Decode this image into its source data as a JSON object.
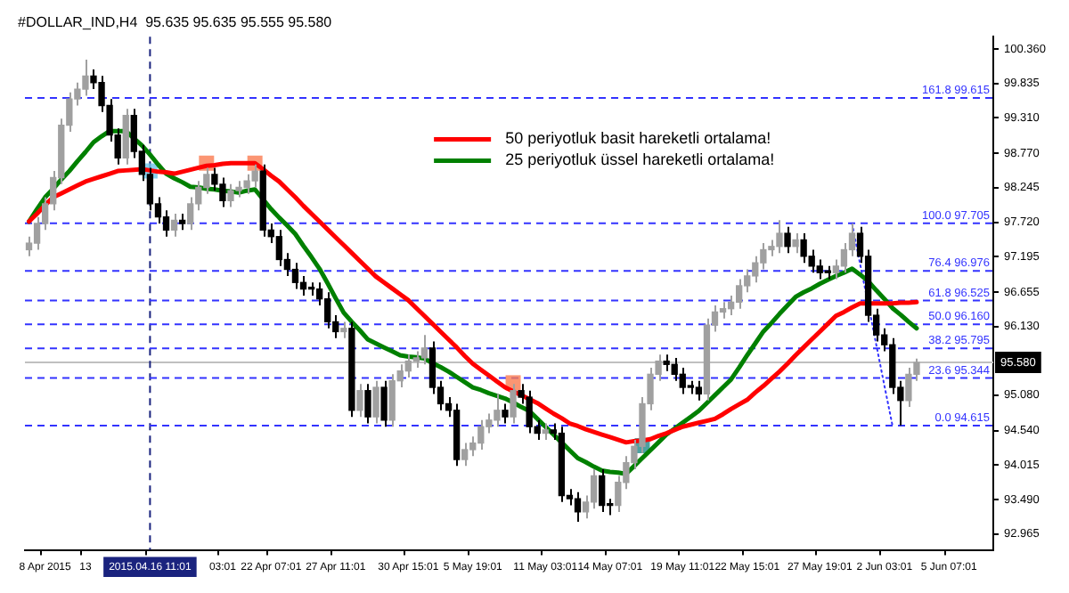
{
  "chart_data": {
    "type": "candlestick",
    "title": "#DOLLAR_IND,H4  95.635 95.635 95.555 95.580",
    "categories": [
      null,
      null,
      "8 Apr 2015",
      null,
      null,
      null,
      null,
      "13",
      null,
      null,
      null,
      null,
      null,
      null,
      null,
      "2015.04.16 11:01",
      null,
      null,
      null,
      null,
      null,
      null,
      null,
      null,
      "03:01",
      null,
      null,
      null,
      null,
      null,
      "22 Apr 07:01",
      null,
      null,
      null,
      null,
      null,
      null,
      null,
      "27 Apr 11:01",
      null,
      null,
      null,
      null,
      null,
      null,
      null,
      null,
      "30 Apr 15:01",
      null,
      null,
      null,
      null,
      null,
      null,
      null,
      "5 May 19:01",
      null,
      null,
      null,
      null,
      null,
      null,
      null,
      null,
      "11 May 03:01",
      null,
      null,
      null,
      null,
      null,
      null,
      null,
      "14 May 07:01",
      null,
      null,
      null,
      null,
      null,
      null,
      null,
      null,
      "19 May 11:01",
      null,
      null,
      null,
      null,
      null,
      null,
      null,
      "22 May 15:01",
      null,
      null,
      null,
      null,
      null,
      null,
      null,
      null,
      "27 May 19:01",
      null,
      null,
      null,
      null,
      null,
      null,
      null,
      "2 Jun 03:01",
      null,
      null,
      null,
      null,
      null,
      null,
      null,
      "5 Jun 07:01",
      null,
      null,
      null,
      null,
      null
    ],
    "ohlc": [
      [
        97.3,
        97.5,
        97.2,
        97.4
      ],
      [
        97.4,
        97.8,
        97.3,
        97.7
      ],
      [
        97.7,
        98.1,
        97.6,
        98.0
      ],
      [
        98.0,
        98.5,
        97.9,
        98.4
      ],
      [
        98.4,
        99.3,
        98.3,
        99.2
      ],
      [
        99.2,
        99.7,
        99.1,
        99.6
      ],
      [
        99.6,
        99.85,
        99.5,
        99.75
      ],
      [
        99.75,
        100.2,
        99.65,
        99.95
      ],
      [
        99.95,
        100.05,
        99.75,
        99.85
      ],
      [
        99.85,
        99.95,
        99.4,
        99.5
      ],
      [
        99.5,
        99.6,
        98.95,
        99.05
      ],
      [
        99.05,
        99.15,
        98.6,
        98.7
      ],
      [
        98.7,
        99.45,
        98.6,
        99.35
      ],
      [
        99.35,
        99.45,
        98.7,
        98.8
      ],
      [
        98.8,
        98.9,
        98.35,
        98.45
      ],
      [
        98.45,
        98.55,
        97.9,
        98.0
      ],
      [
        98.0,
        98.1,
        97.7,
        97.8
      ],
      [
        97.8,
        97.9,
        97.5,
        97.6
      ],
      [
        97.6,
        97.85,
        97.5,
        97.75
      ],
      [
        97.75,
        97.85,
        97.6,
        97.7
      ],
      [
        97.7,
        98.1,
        97.6,
        98.0
      ],
      [
        98.0,
        98.35,
        97.9,
        98.25
      ],
      [
        98.25,
        98.55,
        98.15,
        98.45
      ],
      [
        98.45,
        98.55,
        98.2,
        98.3
      ],
      [
        98.3,
        98.4,
        97.95,
        98.05
      ],
      [
        98.05,
        98.3,
        97.95,
        98.2
      ],
      [
        98.2,
        98.35,
        98.1,
        98.25
      ],
      [
        98.25,
        98.45,
        98.15,
        98.35
      ],
      [
        98.35,
        98.6,
        98.25,
        98.5
      ],
      [
        98.5,
        98.6,
        97.5,
        97.6
      ],
      [
        97.6,
        97.7,
        97.4,
        97.5
      ],
      [
        97.5,
        97.6,
        97.05,
        97.15
      ],
      [
        97.15,
        97.25,
        96.9,
        97.0
      ],
      [
        97.0,
        97.1,
        96.7,
        96.8
      ],
      [
        96.8,
        96.9,
        96.6,
        96.7
      ],
      [
        96.7,
        96.8,
        96.6,
        96.7
      ],
      [
        96.7,
        96.8,
        96.45,
        96.55
      ],
      [
        96.55,
        96.65,
        96.1,
        96.2
      ],
      [
        96.2,
        96.3,
        95.95,
        96.05
      ],
      [
        96.05,
        96.2,
        95.95,
        96.1
      ],
      [
        96.1,
        96.2,
        94.75,
        94.85
      ],
      [
        94.85,
        95.25,
        94.75,
        95.15
      ],
      [
        95.15,
        95.25,
        94.65,
        94.75
      ],
      [
        94.75,
        95.3,
        94.65,
        95.2
      ],
      [
        95.2,
        95.3,
        94.6,
        94.7
      ],
      [
        94.7,
        95.4,
        94.6,
        95.3
      ],
      [
        95.3,
        95.55,
        95.2,
        95.45
      ],
      [
        95.45,
        95.7,
        95.35,
        95.6
      ],
      [
        95.6,
        95.75,
        95.5,
        95.65
      ],
      [
        95.65,
        96.0,
        95.55,
        95.8
      ],
      [
        95.8,
        95.9,
        95.1,
        95.2
      ],
      [
        95.2,
        95.3,
        94.85,
        94.95
      ],
      [
        94.95,
        95.05,
        94.75,
        94.85
      ],
      [
        94.85,
        94.95,
        94.0,
        94.1
      ],
      [
        94.1,
        94.35,
        94.0,
        94.25
      ],
      [
        94.25,
        94.45,
        94.15,
        94.35
      ],
      [
        94.35,
        94.7,
        94.25,
        94.6
      ],
      [
        94.6,
        94.8,
        94.5,
        94.7
      ],
      [
        94.7,
        95.1,
        94.6,
        94.85
      ],
      [
        94.85,
        94.95,
        94.65,
        94.75
      ],
      [
        94.75,
        95.25,
        94.65,
        95.15
      ],
      [
        95.15,
        95.25,
        94.95,
        95.05
      ],
      [
        95.05,
        95.15,
        94.5,
        94.6
      ],
      [
        94.6,
        94.7,
        94.4,
        94.5
      ],
      [
        94.5,
        94.65,
        94.4,
        94.55
      ],
      [
        94.55,
        94.65,
        94.4,
        94.5
      ],
      [
        94.5,
        94.6,
        93.45,
        93.55
      ],
      [
        93.55,
        93.65,
        93.4,
        93.5
      ],
      [
        93.5,
        93.6,
        93.15,
        93.3
      ],
      [
        93.3,
        93.55,
        93.2,
        93.45
      ],
      [
        93.45,
        93.95,
        93.35,
        93.85
      ],
      [
        93.85,
        93.95,
        93.3,
        93.4
      ],
      [
        93.4,
        93.5,
        93.25,
        93.4
      ],
      [
        93.4,
        93.85,
        93.3,
        93.75
      ],
      [
        93.75,
        94.15,
        93.65,
        94.05
      ],
      [
        94.05,
        94.4,
        93.95,
        94.3
      ],
      [
        94.3,
        95.05,
        94.2,
        94.95
      ],
      [
        94.95,
        95.5,
        94.85,
        95.4
      ],
      [
        95.4,
        95.7,
        95.3,
        95.6
      ],
      [
        95.6,
        95.7,
        95.45,
        95.55
      ],
      [
        95.55,
        95.65,
        95.3,
        95.4
      ],
      [
        95.4,
        95.5,
        95.1,
        95.2
      ],
      [
        95.2,
        95.3,
        95.1,
        95.2
      ],
      [
        95.2,
        95.3,
        95.0,
        95.1
      ],
      [
        95.1,
        96.25,
        95.0,
        96.15
      ],
      [
        96.15,
        96.45,
        96.05,
        96.35
      ],
      [
        96.35,
        96.5,
        96.25,
        96.4
      ],
      [
        96.4,
        96.6,
        96.3,
        96.5
      ],
      [
        96.5,
        96.85,
        96.4,
        96.75
      ],
      [
        96.75,
        97.0,
        96.65,
        96.9
      ],
      [
        96.9,
        97.2,
        96.8,
        97.1
      ],
      [
        97.1,
        97.4,
        97.0,
        97.3
      ],
      [
        97.3,
        97.45,
        97.2,
        97.35
      ],
      [
        97.35,
        97.75,
        97.25,
        97.55
      ],
      [
        97.55,
        97.65,
        97.25,
        97.35
      ],
      [
        97.35,
        97.55,
        97.25,
        97.45
      ],
      [
        97.45,
        97.55,
        97.1,
        97.2
      ],
      [
        97.2,
        97.3,
        96.95,
        97.05
      ],
      [
        97.05,
        97.15,
        96.85,
        96.95
      ],
      [
        96.95,
        97.05,
        96.85,
        96.95
      ],
      [
        96.95,
        97.15,
        96.85,
        97.05
      ],
      [
        97.05,
        97.4,
        96.95,
        97.3
      ],
      [
        97.3,
        97.7,
        97.2,
        97.55
      ],
      [
        97.55,
        97.65,
        97.1,
        97.2
      ],
      [
        97.2,
        97.3,
        96.2,
        96.3
      ],
      [
        96.3,
        96.4,
        95.9,
        96.0
      ],
      [
        96.0,
        96.1,
        95.75,
        95.85
      ],
      [
        95.85,
        95.95,
        95.1,
        95.2
      ],
      [
        95.2,
        95.3,
        94.62,
        95.0
      ],
      [
        95.0,
        95.5,
        94.9,
        95.4
      ],
      [
        95.4,
        95.64,
        95.3,
        95.58
      ],
      null,
      null,
      null,
      null,
      null,
      null,
      null,
      null,
      null
    ],
    "colors": [
      "#a0a0a0",
      "#a0a0a0",
      "#a0a0a0",
      "#a0a0a0",
      "#a0a0a0",
      "#a0a0a0",
      "#a0a0a0",
      "#a0a0a0",
      "#000000",
      "#000000",
      "#000000",
      "#000000",
      "#a0a0a0",
      "#000000",
      "#000000",
      "#000000",
      "#000000",
      "#000000",
      "#a0a0a0",
      "#000000",
      "#a0a0a0",
      "#a0a0a0",
      "#a0a0a0",
      "#000000",
      "#000000",
      "#a0a0a0",
      "#a0a0a0",
      "#a0a0a0",
      "#a0a0a0",
      "#000000",
      "#000000",
      "#000000",
      "#000000",
      "#000000",
      "#000000",
      "#000000",
      "#000000",
      "#000000",
      "#000000",
      "#a0a0a0",
      "#000000",
      "#a0a0a0",
      "#000000",
      "#a0a0a0",
      "#000000",
      "#a0a0a0",
      "#a0a0a0",
      "#a0a0a0",
      "#a0a0a0",
      "#a0a0a0",
      "#000000",
      "#000000",
      "#000000",
      "#000000",
      "#a0a0a0",
      "#a0a0a0",
      "#a0a0a0",
      "#a0a0a0",
      "#a0a0a0",
      "#000000",
      "#a0a0a0",
      "#000000",
      "#000000",
      "#000000",
      "#a0a0a0",
      "#000000",
      "#000000",
      "#000000",
      "#000000",
      "#a0a0a0",
      "#a0a0a0",
      "#000000",
      "#000000",
      "#a0a0a0",
      "#a0a0a0",
      "#a0a0a0",
      "#a0a0a0",
      "#a0a0a0",
      "#a0a0a0",
      "#000000",
      "#000000",
      "#000000",
      "#000000",
      "#000000",
      "#a0a0a0",
      "#a0a0a0",
      "#a0a0a0",
      "#a0a0a0",
      "#a0a0a0",
      "#a0a0a0",
      "#a0a0a0",
      "#a0a0a0",
      "#a0a0a0",
      "#a0a0a0",
      "#000000",
      "#a0a0a0",
      "#000000",
      "#000000",
      "#000000",
      "#000000",
      "#a0a0a0",
      "#a0a0a0",
      "#a0a0a0",
      "#000000",
      "#000000",
      "#000000",
      "#000000",
      "#000000",
      "#000000",
      "#a0a0a0",
      "#a0a0a0",
      null,
      null,
      null,
      null,
      null,
      null,
      null,
      null,
      null
    ],
    "series": [
      {
        "type": "line",
        "name": "50 periyotluk basit hareketli ortalama!",
        "color": "#ff0000",
        "values": [
          97.73,
          97.85,
          97.98,
          98.1,
          98.16,
          98.22,
          98.28,
          98.34,
          98.38,
          98.42,
          98.46,
          98.5,
          98.51,
          98.52,
          98.53,
          98.51,
          98.49,
          98.48,
          98.46,
          98.49,
          98.52,
          98.55,
          98.58,
          98.59,
          98.61,
          98.62,
          98.62,
          98.62,
          98.62,
          98.53,
          98.43,
          98.34,
          98.22,
          98.1,
          97.97,
          97.85,
          97.73,
          97.61,
          97.49,
          97.37,
          97.25,
          97.13,
          97.01,
          96.89,
          96.8,
          96.71,
          96.62,
          96.53,
          96.41,
          96.29,
          96.17,
          96.05,
          95.93,
          95.81,
          95.68,
          95.56,
          95.47,
          95.38,
          95.29,
          95.2,
          95.14,
          95.08,
          95.02,
          94.96,
          94.88,
          94.8,
          94.73,
          94.65,
          94.61,
          94.56,
          94.52,
          94.48,
          94.44,
          94.4,
          94.36,
          94.38,
          94.39,
          94.41,
          94.46,
          94.5,
          94.55,
          94.6,
          94.63,
          94.66,
          94.69,
          94.72,
          94.79,
          94.87,
          94.94,
          95.01,
          95.12,
          95.22,
          95.33,
          95.44,
          95.56,
          95.69,
          95.81,
          95.93,
          96.05,
          96.17,
          96.29,
          96.35,
          96.42,
          96.48,
          96.48,
          96.48,
          96.48,
          96.48,
          96.49,
          96.49,
          96.5,
          null,
          null,
          null,
          null,
          null,
          null,
          null,
          null,
          null
        ]
      },
      {
        "type": "line",
        "name": "25 periyotluk üssel hareketli ortalama!",
        "color": "#008000",
        "values": [
          97.73,
          97.92,
          98.1,
          98.23,
          98.37,
          98.5,
          98.65,
          98.79,
          98.94,
          99.03,
          99.11,
          99.11,
          99.11,
          99.0,
          98.89,
          98.75,
          98.6,
          98.46,
          98.39,
          98.33,
          98.26,
          98.25,
          98.23,
          98.22,
          98.2,
          98.19,
          98.17,
          98.2,
          98.22,
          98.07,
          97.92,
          97.79,
          97.67,
          97.54,
          97.36,
          97.19,
          97.01,
          96.79,
          96.56,
          96.34,
          96.2,
          96.07,
          95.93,
          95.87,
          95.81,
          95.75,
          95.69,
          95.67,
          95.66,
          95.64,
          95.57,
          95.51,
          95.44,
          95.36,
          95.28,
          95.2,
          95.16,
          95.11,
          95.07,
          95.03,
          94.97,
          94.9,
          94.84,
          94.72,
          94.6,
          94.48,
          94.36,
          94.24,
          94.12,
          94.06,
          93.99,
          93.93,
          93.91,
          93.9,
          93.88,
          94.0,
          94.12,
          94.24,
          94.36,
          94.48,
          94.57,
          94.66,
          94.75,
          94.84,
          94.96,
          95.08,
          95.2,
          95.32,
          95.5,
          95.69,
          95.87,
          96.05,
          96.18,
          96.32,
          96.45,
          96.58,
          96.65,
          96.71,
          96.78,
          96.84,
          96.9,
          96.95,
          97.01,
          96.92,
          96.82,
          96.68,
          96.55,
          96.41,
          96.31,
          96.2,
          96.1,
          null,
          null,
          null,
          null,
          null,
          null,
          null,
          null,
          null
        ]
      },
      {
        "type": "line",
        "color": "#3333ff",
        "line_style": "dotted",
        "values": [
          null,
          null,
          null,
          null,
          null,
          null,
          null,
          null,
          null,
          null,
          null,
          null,
          null,
          null,
          null,
          null,
          null,
          null,
          null,
          null,
          null,
          null,
          null,
          null,
          null,
          null,
          null,
          null,
          null,
          null,
          null,
          null,
          null,
          null,
          null,
          null,
          null,
          null,
          null,
          null,
          null,
          null,
          null,
          null,
          null,
          null,
          null,
          null,
          null,
          null,
          null,
          null,
          null,
          null,
          null,
          null,
          null,
          null,
          null,
          null,
          null,
          null,
          null,
          null,
          null,
          null,
          null,
          null,
          null,
          null,
          null,
          null,
          null,
          null,
          null,
          null,
          null,
          null,
          null,
          null,
          null,
          null,
          null,
          null,
          null,
          null,
          null,
          null,
          null,
          null,
          null,
          null,
          null,
          null,
          null,
          null,
          null,
          null,
          null,
          null,
          null,
          null,
          97.7,
          97.08,
          96.47,
          95.85,
          95.23,
          94.62,
          null,
          null,
          null,
          null,
          null,
          null,
          null,
          null,
          null,
          null,
          null,
          null
        ]
      },
      {
        "type": "scatter",
        "marker": "square",
        "values": [
          null,
          null,
          null,
          null,
          null,
          null,
          null,
          null,
          null,
          null,
          null,
          null,
          null,
          null,
          null,
          98.5,
          null,
          null,
          null,
          null,
          null,
          null,
          98.62,
          null,
          null,
          null,
          null,
          null,
          98.62,
          null,
          null,
          null,
          null,
          null,
          null,
          null,
          null,
          null,
          null,
          null,
          null,
          null,
          null,
          null,
          null,
          null,
          null,
          null,
          null,
          null,
          null,
          null,
          null,
          null,
          null,
          null,
          null,
          null,
          null,
          null,
          95.27,
          null,
          null,
          null,
          null,
          null,
          null,
          null,
          null,
          null,
          null,
          null,
          null,
          null,
          null,
          null,
          94.31,
          null,
          null,
          null,
          null,
          null,
          null,
          null,
          null,
          null,
          null,
          null,
          null,
          null,
          null,
          null,
          null,
          null,
          null,
          null,
          null,
          null,
          null,
          null,
          null,
          null,
          null,
          null,
          null,
          null,
          null,
          null,
          null,
          null,
          null,
          null,
          null,
          null,
          null,
          null,
          null,
          null,
          null,
          null
        ],
        "colors": [
          null,
          null,
          null,
          null,
          null,
          null,
          null,
          null,
          null,
          null,
          null,
          null,
          null,
          null,
          null,
          "#6cc4e8",
          null,
          null,
          null,
          null,
          null,
          null,
          "#fa7a50",
          null,
          null,
          null,
          null,
          null,
          "#fa7a50",
          null,
          null,
          null,
          null,
          null,
          null,
          null,
          null,
          null,
          null,
          null,
          null,
          null,
          null,
          null,
          null,
          null,
          null,
          null,
          null,
          null,
          null,
          null,
          null,
          null,
          null,
          null,
          null,
          null,
          null,
          null,
          "#fa7a50",
          null,
          null,
          null,
          null,
          null,
          null,
          null,
          null,
          null,
          null,
          null,
          null,
          null,
          null,
          null,
          "#1f8a8a",
          null,
          null,
          null,
          null,
          null,
          null,
          null,
          null,
          null,
          null,
          null,
          null,
          null,
          null,
          null,
          null,
          null,
          null,
          null,
          null,
          null,
          null,
          null,
          null,
          null,
          null,
          null,
          null,
          null,
          null,
          null,
          null,
          null,
          null,
          null,
          null,
          null,
          null,
          null,
          null,
          null,
          null,
          null
        ]
      }
    ],
    "ylim": [
      92.72,
      100.55
    ],
    "yticks": [
      {
        "value": 92.965,
        "label": "92.965"
      },
      {
        "value": 93.49,
        "label": "93.490"
      },
      {
        "value": 94.015,
        "label": "94.015"
      },
      {
        "value": 94.54,
        "label": "94.540"
      },
      {
        "value": 95.08,
        "label": "95.080"
      },
      {
        "value": 96.13,
        "label": "96.130"
      },
      {
        "value": 96.655,
        "label": "96.655"
      },
      {
        "value": 97.195,
        "label": "97.195"
      },
      {
        "value": 97.72,
        "label": "97.720"
      },
      {
        "value": 98.245,
        "label": "98.245"
      },
      {
        "value": 98.77,
        "label": "98.770"
      },
      {
        "value": 99.31,
        "label": "99.310"
      },
      {
        "value": 99.835,
        "label": "99.835"
      },
      {
        "value": 100.36,
        "label": "100.360"
      }
    ],
    "ref_lines": [
      {
        "axis": "y",
        "value": 95.58,
        "label": "95.580",
        "color": "#c0c0c0",
        "line_style": "solid"
      },
      {
        "axis": "x",
        "value": "2015.04.16 11:01",
        "color": "#1a237e",
        "line_style": "dashed"
      },
      {
        "axis": "y",
        "value": 99.615,
        "label": "161.8 99.615",
        "color": "#3333ff",
        "line_style": "dashed"
      },
      {
        "axis": "y",
        "value": 97.705,
        "label": "100.0 97.705",
        "color": "#3333ff",
        "line_style": "dashed"
      },
      {
        "axis": "y",
        "value": 96.976,
        "label": "76.4 96.976",
        "color": "#3333ff",
        "line_style": "dashed"
      },
      {
        "axis": "y",
        "value": 96.525,
        "label": "61.8 96.525",
        "color": "#3333ff",
        "line_style": "dashed"
      },
      {
        "axis": "y",
        "value": 96.16,
        "label": "50.0 96.160",
        "color": "#3333ff",
        "line_style": "dashed"
      },
      {
        "axis": "y",
        "value": 95.795,
        "label": "38.2 95.795",
        "color": "#3333ff",
        "line_style": "dashed"
      },
      {
        "axis": "y",
        "value": 95.344,
        "label": "23.6 95.344",
        "color": "#3333ff",
        "line_style": "dashed"
      },
      {
        "axis": "y",
        "value": 94.615,
        "label": "0.0 94.615",
        "color": "#3333ff",
        "line_style": "dashed"
      }
    ],
    "legend": "top"
  }
}
